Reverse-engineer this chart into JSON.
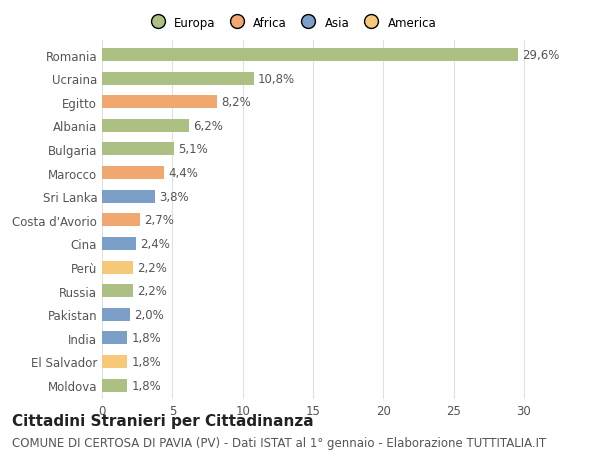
{
  "categories": [
    "Moldova",
    "El Salvador",
    "India",
    "Pakistan",
    "Russia",
    "Perù",
    "Cina",
    "Costa d'Avorio",
    "Sri Lanka",
    "Marocco",
    "Bulgaria",
    "Albania",
    "Egitto",
    "Ucraina",
    "Romania"
  ],
  "values": [
    1.8,
    1.8,
    1.8,
    2.0,
    2.2,
    2.2,
    2.4,
    2.7,
    3.8,
    4.4,
    5.1,
    6.2,
    8.2,
    10.8,
    29.6
  ],
  "labels": [
    "1,8%",
    "1,8%",
    "1,8%",
    "2,0%",
    "2,2%",
    "2,2%",
    "2,4%",
    "2,7%",
    "3,8%",
    "4,4%",
    "5,1%",
    "6,2%",
    "8,2%",
    "10,8%",
    "29,6%"
  ],
  "colors": [
    "#adc084",
    "#f5c87a",
    "#7b9fc7",
    "#7b9fc7",
    "#adc084",
    "#f5c87a",
    "#7b9fc7",
    "#f0a870",
    "#7b9fc7",
    "#f0a870",
    "#adc084",
    "#adc084",
    "#f0a870",
    "#adc084",
    "#adc084"
  ],
  "legend_labels": [
    "Europa",
    "Africa",
    "Asia",
    "America"
  ],
  "legend_colors": [
    "#adc084",
    "#f0a870",
    "#7b9fc7",
    "#f5c87a"
  ],
  "title": "Cittadini Stranieri per Cittadinanza",
  "subtitle": "COMUNE DI CERTOSA DI PAVIA (PV) - Dati ISTAT al 1° gennaio - Elaborazione TUTTITALIA.IT",
  "xlim": [
    0,
    32
  ],
  "xticks": [
    0,
    5,
    10,
    15,
    20,
    25,
    30
  ],
  "background_color": "#ffffff",
  "grid_color": "#e0e0e0",
  "bar_height": 0.55,
  "title_fontsize": 11,
  "subtitle_fontsize": 8.5,
  "tick_fontsize": 8.5,
  "label_fontsize": 8.5
}
